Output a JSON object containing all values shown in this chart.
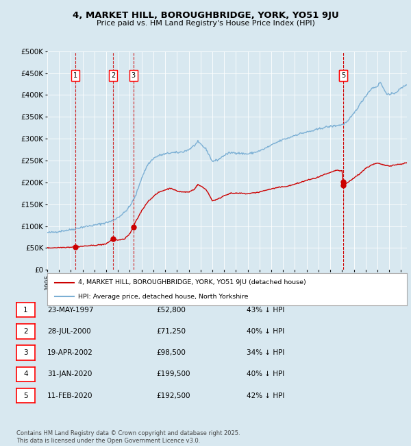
{
  "title": "4, MARKET HILL, BOROUGHBRIDGE, YORK, YO51 9JU",
  "subtitle": "Price paid vs. HM Land Registry's House Price Index (HPI)",
  "bg_color": "#d8e8f0",
  "plot_bg_color": "#d8e8f0",
  "legend_label_red": "4, MARKET HILL, BOROUGHBRIDGE, YORK, YO51 9JU (detached house)",
  "legend_label_blue": "HPI: Average price, detached house, North Yorkshire",
  "footer": "Contains HM Land Registry data © Crown copyright and database right 2025.\nThis data is licensed under the Open Government Licence v3.0.",
  "transactions": [
    {
      "num": 1,
      "date": "23-MAY-1997",
      "price": "£52,800",
      "pct": "43% ↓ HPI",
      "year": 1997.39,
      "value": 52800
    },
    {
      "num": 2,
      "date": "28-JUL-2000",
      "price": "£71,250",
      "pct": "40% ↓ HPI",
      "year": 2000.57,
      "value": 71250
    },
    {
      "num": 3,
      "date": "19-APR-2002",
      "price": "£98,500",
      "pct": "34% ↓ HPI",
      "year": 2002.3,
      "value": 98500
    },
    {
      "num": 4,
      "date": "31-JAN-2020",
      "price": "£199,500",
      "pct": "40% ↓ HPI",
      "year": 2020.08,
      "value": 199500
    },
    {
      "num": 5,
      "date": "11-FEB-2020",
      "price": "£192,500",
      "pct": "42% ↓ HPI",
      "year": 2020.12,
      "value": 192500
    }
  ],
  "ylim": [
    0,
    500000
  ],
  "xlim": [
    1995,
    2025.5
  ],
  "yticks": [
    0,
    50000,
    100000,
    150000,
    200000,
    250000,
    300000,
    350000,
    400000,
    450000,
    500000
  ],
  "ytick_labels": [
    "£0",
    "£50K",
    "£100K",
    "£150K",
    "£200K",
    "£250K",
    "£300K",
    "£350K",
    "£400K",
    "£450K",
    "£500K"
  ],
  "red_color": "#cc0000",
  "blue_color": "#7bafd4",
  "dashed_color": "#cc0000",
  "grid_color": "#ffffff",
  "hpi_key_points": [
    [
      1995.0,
      85000
    ],
    [
      1995.5,
      86000
    ],
    [
      1996.0,
      88000
    ],
    [
      1996.5,
      90000
    ],
    [
      1997.0,
      92000
    ],
    [
      1997.5,
      95000
    ],
    [
      1998.0,
      98000
    ],
    [
      1998.5,
      100000
    ],
    [
      1999.0,
      102000
    ],
    [
      1999.5,
      105000
    ],
    [
      2000.0,
      108000
    ],
    [
      2000.5,
      112000
    ],
    [
      2001.0,
      120000
    ],
    [
      2001.5,
      130000
    ],
    [
      2002.0,
      145000
    ],
    [
      2002.5,
      170000
    ],
    [
      2003.0,
      210000
    ],
    [
      2003.5,
      240000
    ],
    [
      2004.0,
      255000
    ],
    [
      2004.5,
      262000
    ],
    [
      2005.0,
      265000
    ],
    [
      2005.5,
      268000
    ],
    [
      2006.0,
      268000
    ],
    [
      2006.5,
      270000
    ],
    [
      2007.0,
      275000
    ],
    [
      2007.5,
      285000
    ],
    [
      2007.75,
      292000
    ],
    [
      2008.0,
      288000
    ],
    [
      2008.5,
      275000
    ],
    [
      2009.0,
      248000
    ],
    [
      2009.5,
      252000
    ],
    [
      2010.0,
      262000
    ],
    [
      2010.5,
      268000
    ],
    [
      2011.0,
      268000
    ],
    [
      2011.5,
      266000
    ],
    [
      2012.0,
      265000
    ],
    [
      2012.5,
      268000
    ],
    [
      2013.0,
      272000
    ],
    [
      2013.5,
      278000
    ],
    [
      2014.0,
      285000
    ],
    [
      2014.5,
      292000
    ],
    [
      2015.0,
      298000
    ],
    [
      2015.5,
      302000
    ],
    [
      2016.0,
      308000
    ],
    [
      2016.5,
      312000
    ],
    [
      2017.0,
      315000
    ],
    [
      2017.5,
      318000
    ],
    [
      2018.0,
      322000
    ],
    [
      2018.5,
      326000
    ],
    [
      2019.0,
      328000
    ],
    [
      2019.5,
      330000
    ],
    [
      2020.0,
      332000
    ],
    [
      2020.5,
      340000
    ],
    [
      2021.0,
      358000
    ],
    [
      2021.5,
      378000
    ],
    [
      2022.0,
      398000
    ],
    [
      2022.5,
      415000
    ],
    [
      2023.0,
      420000
    ],
    [
      2023.25,
      430000
    ],
    [
      2023.5,
      415000
    ],
    [
      2023.75,
      405000
    ],
    [
      2024.0,
      400000
    ],
    [
      2024.5,
      405000
    ],
    [
      2025.0,
      415000
    ],
    [
      2025.5,
      425000
    ]
  ],
  "red_key_points": [
    [
      1995.0,
      50000
    ],
    [
      1995.5,
      50500
    ],
    [
      1996.0,
      51000
    ],
    [
      1996.5,
      51500
    ],
    [
      1997.0,
      52000
    ],
    [
      1997.39,
      52800
    ],
    [
      1997.5,
      53000
    ],
    [
      1998.0,
      54000
    ],
    [
      1998.5,
      55000
    ],
    [
      1999.0,
      56000
    ],
    [
      1999.5,
      57500
    ],
    [
      2000.0,
      59000
    ],
    [
      2000.57,
      71250
    ],
    [
      2001.0,
      68000
    ],
    [
      2001.5,
      70000
    ],
    [
      2002.0,
      82000
    ],
    [
      2002.3,
      98500
    ],
    [
      2002.5,
      110000
    ],
    [
      2003.0,
      135000
    ],
    [
      2003.5,
      155000
    ],
    [
      2004.0,
      168000
    ],
    [
      2004.5,
      178000
    ],
    [
      2005.0,
      183000
    ],
    [
      2005.5,
      187000
    ],
    [
      2006.0,
      180000
    ],
    [
      2006.5,
      178000
    ],
    [
      2007.0,
      178000
    ],
    [
      2007.5,
      185000
    ],
    [
      2007.75,
      195000
    ],
    [
      2008.0,
      192000
    ],
    [
      2008.5,
      183000
    ],
    [
      2009.0,
      158000
    ],
    [
      2009.5,
      162000
    ],
    [
      2010.0,
      170000
    ],
    [
      2010.5,
      175000
    ],
    [
      2011.0,
      175000
    ],
    [
      2011.5,
      175000
    ],
    [
      2012.0,
      174000
    ],
    [
      2012.5,
      176000
    ],
    [
      2013.0,
      178000
    ],
    [
      2013.5,
      182000
    ],
    [
      2014.0,
      185000
    ],
    [
      2014.5,
      188000
    ],
    [
      2015.0,
      190000
    ],
    [
      2015.5,
      192000
    ],
    [
      2016.0,
      196000
    ],
    [
      2016.5,
      200000
    ],
    [
      2017.0,
      205000
    ],
    [
      2017.5,
      208000
    ],
    [
      2018.0,
      212000
    ],
    [
      2018.5,
      218000
    ],
    [
      2019.0,
      222000
    ],
    [
      2019.5,
      228000
    ],
    [
      2020.0,
      226000
    ],
    [
      2020.08,
      199500
    ],
    [
      2020.12,
      192500
    ],
    [
      2020.5,
      200000
    ],
    [
      2021.0,
      210000
    ],
    [
      2021.5,
      220000
    ],
    [
      2022.0,
      232000
    ],
    [
      2022.5,
      240000
    ],
    [
      2023.0,
      244000
    ],
    [
      2023.5,
      240000
    ],
    [
      2024.0,
      238000
    ],
    [
      2024.5,
      240000
    ],
    [
      2025.0,
      242000
    ],
    [
      2025.5,
      245000
    ]
  ]
}
